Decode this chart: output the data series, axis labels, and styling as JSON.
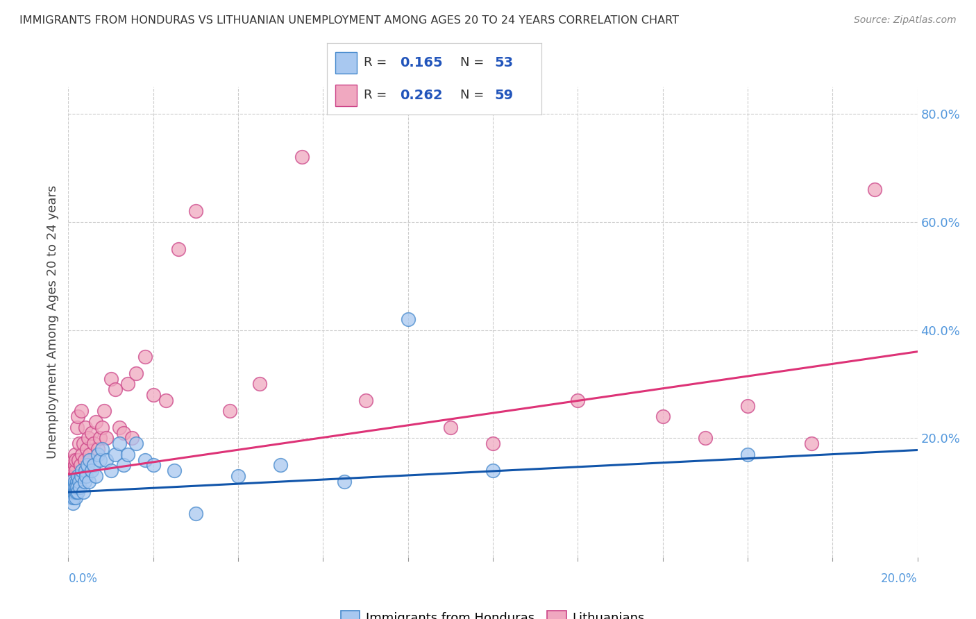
{
  "title": "IMMIGRANTS FROM HONDURAS VS LITHUANIAN UNEMPLOYMENT AMONG AGES 20 TO 24 YEARS CORRELATION CHART",
  "source": "Source: ZipAtlas.com",
  "ylabel": "Unemployment Among Ages 20 to 24 years",
  "right_yticklabels": [
    "20.0%",
    "40.0%",
    "60.0%",
    "80.0%"
  ],
  "right_ytick_vals": [
    0.2,
    0.4,
    0.6,
    0.8
  ],
  "legend_r1": "R = 0.165",
  "legend_n1": "N = 53",
  "legend_r2": "R = 0.262",
  "legend_n2": "N = 59",
  "blue_color": "#A8C8F0",
  "pink_color": "#F0A8C0",
  "blue_edge_color": "#4488CC",
  "pink_edge_color": "#CC4488",
  "blue_line_color": "#1155AA",
  "pink_line_color": "#DD3377",
  "blue_scatter_x": [
    0.0005,
    0.0006,
    0.0007,
    0.0008,
    0.0009,
    0.001,
    0.0011,
    0.0012,
    0.0013,
    0.0014,
    0.0015,
    0.0016,
    0.0017,
    0.0018,
    0.0019,
    0.002,
    0.0021,
    0.0022,
    0.0023,
    0.0025,
    0.0027,
    0.003,
    0.0032,
    0.0035,
    0.0038,
    0.004,
    0.0042,
    0.0045,
    0.0048,
    0.005,
    0.0055,
    0.006,
    0.0065,
    0.007,
    0.0075,
    0.008,
    0.009,
    0.01,
    0.011,
    0.012,
    0.013,
    0.014,
    0.016,
    0.018,
    0.02,
    0.025,
    0.03,
    0.04,
    0.05,
    0.065,
    0.08,
    0.1,
    0.16
  ],
  "blue_scatter_y": [
    0.11,
    0.1,
    0.09,
    0.12,
    0.1,
    0.11,
    0.08,
    0.09,
    0.1,
    0.11,
    0.12,
    0.1,
    0.09,
    0.11,
    0.1,
    0.12,
    0.11,
    0.1,
    0.13,
    0.12,
    0.11,
    0.13,
    0.14,
    0.1,
    0.12,
    0.14,
    0.13,
    0.15,
    0.12,
    0.16,
    0.14,
    0.15,
    0.13,
    0.17,
    0.16,
    0.18,
    0.16,
    0.14,
    0.17,
    0.19,
    0.15,
    0.17,
    0.19,
    0.16,
    0.15,
    0.14,
    0.06,
    0.13,
    0.15,
    0.12,
    0.42,
    0.14,
    0.17
  ],
  "pink_scatter_x": [
    0.0005,
    0.0006,
    0.0007,
    0.0008,
    0.0009,
    0.001,
    0.0011,
    0.0012,
    0.0013,
    0.0014,
    0.0015,
    0.0016,
    0.0017,
    0.0018,
    0.002,
    0.0022,
    0.0024,
    0.0026,
    0.0028,
    0.003,
    0.0032,
    0.0035,
    0.0038,
    0.004,
    0.0043,
    0.0046,
    0.005,
    0.0055,
    0.006,
    0.0065,
    0.007,
    0.0075,
    0.008,
    0.0085,
    0.009,
    0.01,
    0.011,
    0.012,
    0.013,
    0.014,
    0.015,
    0.016,
    0.018,
    0.02,
    0.023,
    0.026,
    0.03,
    0.038,
    0.045,
    0.055,
    0.07,
    0.09,
    0.1,
    0.12,
    0.14,
    0.15,
    0.16,
    0.175,
    0.19
  ],
  "pink_scatter_y": [
    0.12,
    0.14,
    0.11,
    0.13,
    0.1,
    0.15,
    0.12,
    0.14,
    0.16,
    0.13,
    0.15,
    0.17,
    0.14,
    0.16,
    0.22,
    0.24,
    0.16,
    0.19,
    0.15,
    0.25,
    0.17,
    0.19,
    0.16,
    0.22,
    0.18,
    0.2,
    0.17,
    0.21,
    0.19,
    0.23,
    0.18,
    0.2,
    0.22,
    0.25,
    0.2,
    0.31,
    0.29,
    0.22,
    0.21,
    0.3,
    0.2,
    0.32,
    0.35,
    0.28,
    0.27,
    0.55,
    0.62,
    0.25,
    0.3,
    0.72,
    0.27,
    0.22,
    0.19,
    0.27,
    0.24,
    0.2,
    0.26,
    0.19,
    0.66
  ],
  "blue_trend_x": [
    0.0,
    0.2
  ],
  "blue_trend_y": [
    0.1,
    0.178
  ],
  "pink_trend_x": [
    0.0,
    0.2
  ],
  "pink_trend_y": [
    0.133,
    0.36
  ],
  "xmin": 0.0,
  "xmax": 0.2,
  "ymin": -0.02,
  "ymax": 0.85
}
